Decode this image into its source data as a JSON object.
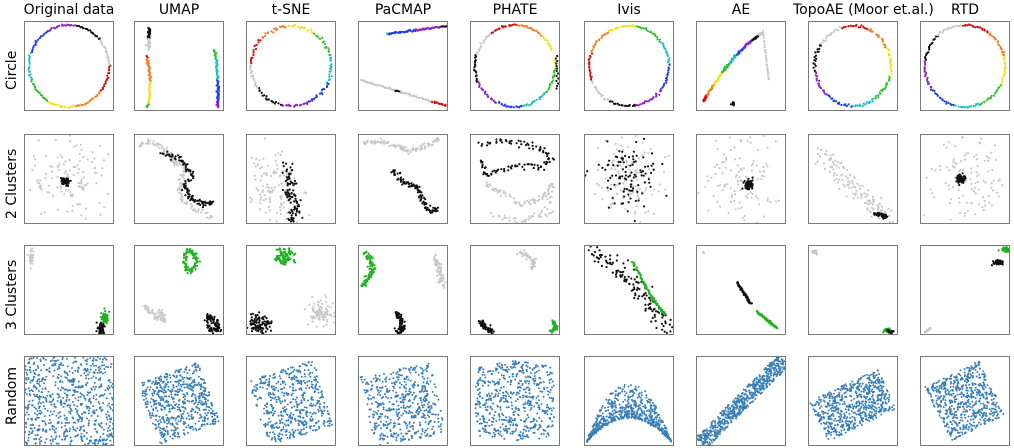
{
  "figure": {
    "columns": [
      "Original data",
      "UMAP",
      "t-SNE",
      "PaCMAP",
      "PHATE",
      "Ivis",
      "AE",
      "TopoAE (Moor et.al.)",
      "RTD"
    ],
    "rows": [
      "Circle",
      "2 Clusters",
      "3 Clusters",
      "Random"
    ]
  },
  "chart_data": {
    "type": "scatter",
    "grid": false,
    "legend": "none",
    "colors": {
      "gray": "#c8c8c8",
      "black": "#111111",
      "green": "#22b022",
      "blue": "#3a7fb5",
      "rainbow": [
        "#d01010",
        "#f08020",
        "#f0e020",
        "#30c030",
        "#20c0c0",
        "#2040e0",
        "#9020c0",
        "#111111",
        "#c8c8c8"
      ]
    },
    "panel_shapes": {
      "Circle": {
        "Original data": "ring",
        "UMAP": "three-arcs",
        "t-SNE": "ring",
        "PaCMAP": "two-lines",
        "PHATE": "ring-open",
        "Ivis": "ring",
        "AE": "diagonal-arc",
        "TopoAE (Moor et.al.)": "ring",
        "RTD": "ring"
      },
      "2 Clusters": {
        "Original data": "dense-core-in-cloud",
        "UMAP": "black-curve-gray-curve",
        "t-SNE": "black-blob-gray-blob",
        "PaCMAP": "gray-curve-black-curve",
        "PHATE": "black-ring-gray-ring",
        "Ivis": "mixed-cloud",
        "AE": "dense-core-in-cloud",
        "TopoAE (Moor et.al.)": "gray-band-black-tip",
        "RTD": "dense-core-in-cloud"
      },
      "3 Clusters": {
        "Original data": "gray-top-left, green+black bottom-right",
        "UMAP": "green-top, gray-left, black-right",
        "t-SNE": "green-top, black-left, gray-right",
        "PaCMAP": "green-top-left, black-bottom, gray-right",
        "PHATE": "gray-arc-top, black-left, green-right",
        "Ivis": "diagonal band",
        "AE": "diagonal line",
        "TopoAE (Moor et.al.)": "gray-top-left, green+black bottom-right",
        "RTD": "green-top-right, black-right, gray-bottom-left"
      },
      "Random": {
        "Original data": "uniform square",
        "UMAP": "rotated square",
        "t-SNE": "rotated clumpy square",
        "PaCMAP": "rotated square with holes",
        "PHATE": "rounded square with holes",
        "Ivis": "bowl shape",
        "AE": "diagonal band",
        "TopoAE (Moor et.al.)": "rotated rectangle",
        "RTD": "rotated square"
      }
    }
  }
}
